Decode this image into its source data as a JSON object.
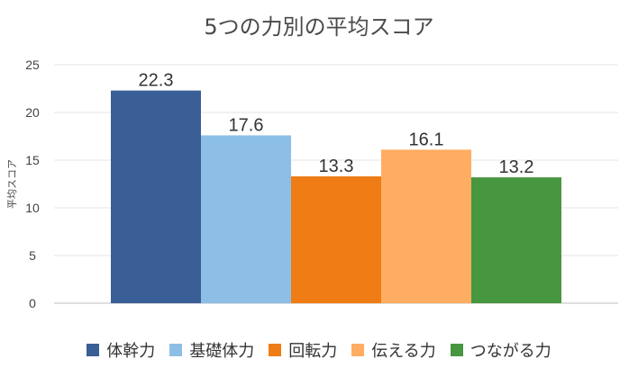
{
  "chart_data": {
    "type": "bar",
    "title": "5つの力別の平均スコア",
    "ylabel": "平均スコア",
    "xlabel": "",
    "ylim": [
      0,
      25
    ],
    "yticks": [
      0,
      5,
      10,
      15,
      20,
      25
    ],
    "grid": true,
    "legend_position": "bottom",
    "series": [
      {
        "name": "体幹力",
        "value": 22.3,
        "label": "22.3",
        "color": "#3a5f97"
      },
      {
        "name": "基礎体力",
        "value": 17.6,
        "label": "17.6",
        "color": "#8dbfe6"
      },
      {
        "name": "回転力",
        "value": 13.3,
        "label": "13.3",
        "color": "#ef7c14"
      },
      {
        "name": "伝える力",
        "value": 16.1,
        "label": "16.1",
        "color": "#ffad63"
      },
      {
        "name": "つながる力",
        "value": 13.2,
        "label": "13.2",
        "color": "#46973f"
      }
    ]
  }
}
